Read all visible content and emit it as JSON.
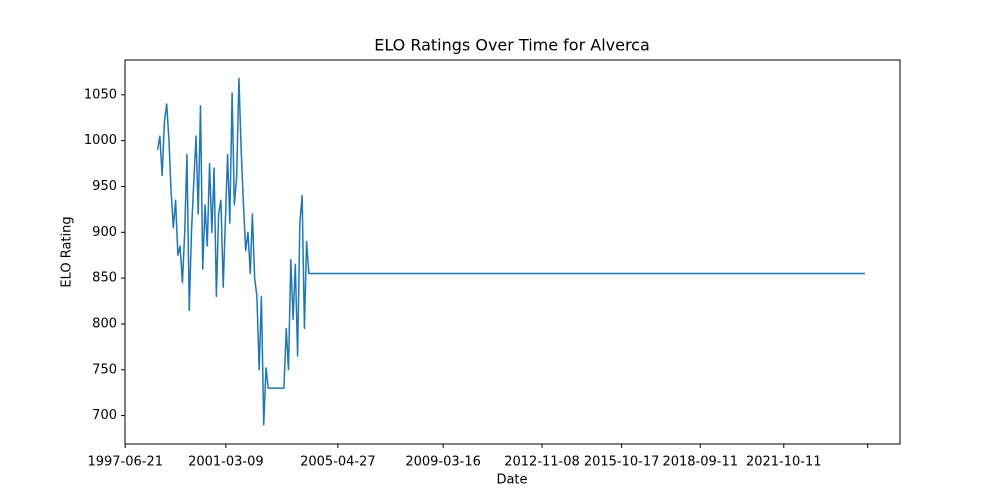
{
  "chart_data": {
    "type": "line",
    "title": "ELO Ratings Over Time for Alverca",
    "x_label": "Date",
    "y_label": "ELO Rating",
    "color": "#1f77b4",
    "x": [
      "1998-09-01",
      "1998-10-01",
      "1998-11-01",
      "1998-12-01",
      "1999-01-01",
      "1999-02-01",
      "1999-03-01",
      "1999-04-01",
      "1999-05-01",
      "1999-06-01",
      "1999-07-01",
      "1999-08-01",
      "1999-09-01",
      "1999-10-01",
      "1999-11-01",
      "1999-12-01",
      "2000-01-01",
      "2000-02-01",
      "2000-03-01",
      "2000-04-01",
      "2000-05-01",
      "2000-06-01",
      "2000-07-01",
      "2000-08-01",
      "2000-09-01",
      "2000-10-01",
      "2000-11-01",
      "2000-12-01",
      "2001-01-01",
      "2001-02-01",
      "2001-03-01",
      "2001-04-01",
      "2001-05-01",
      "2001-06-01",
      "2001-07-01",
      "2001-08-01",
      "2001-09-01",
      "2001-10-01",
      "2001-11-01",
      "2001-12-01",
      "2002-01-01",
      "2002-02-01",
      "2002-03-01",
      "2002-04-01",
      "2002-05-01",
      "2002-06-01",
      "2002-07-01",
      "2002-08-01",
      "2002-09-01",
      "2002-10-01",
      "2003-05-01",
      "2003-06-01",
      "2003-07-01",
      "2003-08-01",
      "2003-09-01",
      "2003-10-01",
      "2003-11-01",
      "2003-12-01",
      "2004-01-01",
      "2004-02-01",
      "2004-03-01",
      "2004-04-01",
      "2024-10-09"
    ],
    "values": [
      990,
      1005,
      962,
      1020,
      1040,
      1000,
      945,
      905,
      935,
      875,
      885,
      845,
      900,
      985,
      815,
      900,
      955,
      1005,
      920,
      1038,
      860,
      930,
      885,
      975,
      900,
      970,
      830,
      920,
      935,
      840,
      910,
      985,
      910,
      1052,
      930,
      960,
      1068,
      990,
      930,
      880,
      900,
      855,
      920,
      850,
      830,
      750,
      830,
      690,
      752,
      730,
      730,
      795,
      750,
      870,
      805,
      865,
      765,
      910,
      940,
      795,
      890,
      855,
      855
    ],
    "xlim": [
      "1997-06-18",
      "2026-01-25"
    ],
    "xticks": [
      "1997-06-21",
      "2001-03-09",
      "2005-04-27",
      "2009-03-16",
      "2012-11-08",
      "2015-10-17",
      "2018-09-11",
      "2021-10-11",
      {
        "value": "2024-11-15",
        "label": null
      }
    ],
    "ylim": [
      669,
      1088
    ],
    "yticks": [
      700,
      750,
      800,
      850,
      900,
      950,
      1000,
      1050
    ]
  }
}
